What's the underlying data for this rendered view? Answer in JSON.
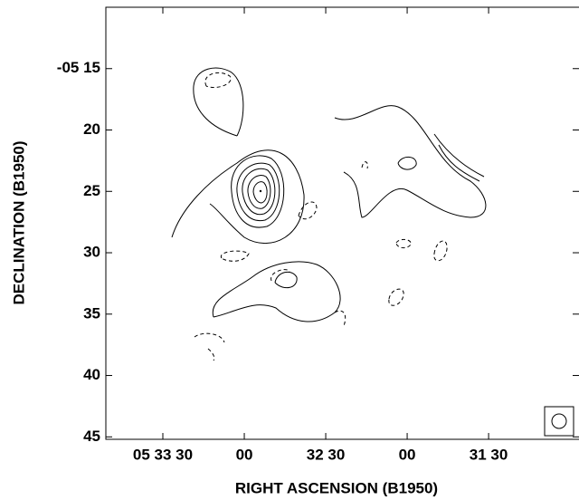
{
  "chart_data": {
    "type": "contour",
    "xlabel": "RIGHT ASCENSION (B1950)",
    "ylabel": "DECLINATION (B1950)",
    "xlim": [
      171,
      -3.3
    ],
    "ylim": [
      10,
      45.2
    ],
    "xticks": [
      {
        "value": 150,
        "label": "05 33 30"
      },
      {
        "value": 120,
        "label": "00"
      },
      {
        "value": 90,
        "label": "32 30"
      },
      {
        "value": 60,
        "label": "00"
      },
      {
        "value": 30,
        "label": "31 30"
      }
    ],
    "yticks": [
      {
        "value": 15,
        "label": "-05 15"
      },
      20,
      25,
      30,
      35,
      40,
      45
    ]
  }
}
